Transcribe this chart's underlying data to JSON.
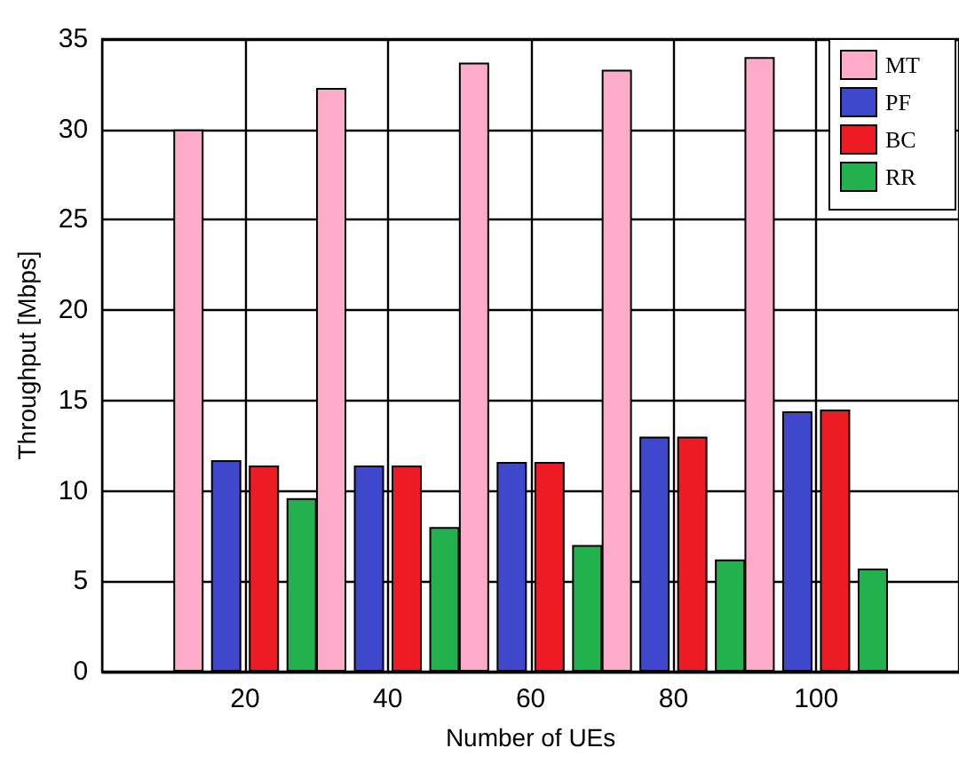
{
  "chart_data": {
    "type": "bar",
    "xlabel": "Number of UEs",
    "ylabel": "Throughput [Mbps]",
    "x": [
      20,
      40,
      60,
      80,
      100
    ],
    "xlim": [
      0,
      120
    ],
    "xticks": [
      20,
      40,
      60,
      80,
      100
    ],
    "ylim": [
      0,
      35
    ],
    "yticks": [
      0,
      5,
      10,
      15,
      20,
      25,
      30,
      35
    ],
    "grid": true,
    "legend": "top right",
    "series": [
      {
        "name": "MT",
        "color": "#fcabc9",
        "values": [
          30.0,
          32.3,
          33.7,
          33.3,
          34.0
        ]
      },
      {
        "name": "PF",
        "color": "#3f48cc",
        "values": [
          11.7,
          11.4,
          11.6,
          13.0,
          14.4
        ]
      },
      {
        "name": "BC",
        "color": "#ed1c24",
        "values": [
          11.4,
          11.4,
          11.6,
          13.0,
          14.5
        ]
      },
      {
        "name": "RR",
        "color": "#22b14c",
        "values": [
          9.6,
          8.0,
          7.0,
          6.2,
          5.7
        ]
      }
    ]
  }
}
